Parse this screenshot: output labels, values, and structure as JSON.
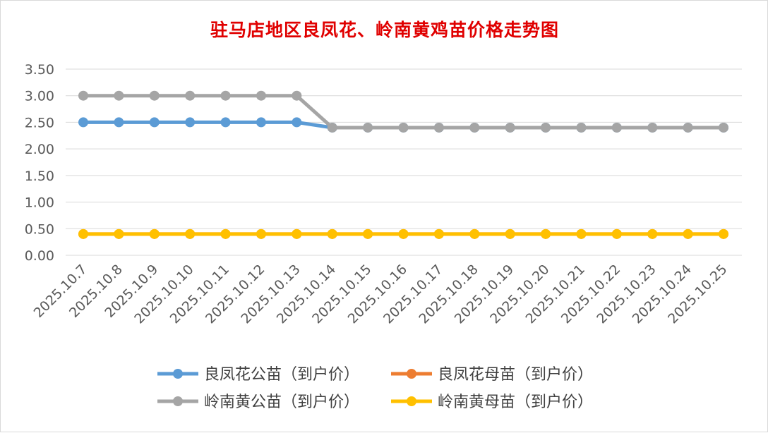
{
  "chart_data": {
    "type": "line",
    "title": "驻马店地区良凤花、岭南黄鸡苗价格走势图",
    "xlabel": "",
    "ylabel": "",
    "ylim": [
      0,
      3.5
    ],
    "yticks": [
      "0.00",
      "0.50",
      "1.00",
      "1.50",
      "2.00",
      "2.50",
      "3.00",
      "3.50"
    ],
    "grid": true,
    "legend_position": "bottom",
    "categories": [
      "2025.10.7",
      "2025.10.8",
      "2025.10.9",
      "2025.10.10",
      "2025.10.11",
      "2025.10.12",
      "2025.10.13",
      "2025.10.14",
      "2025.10.15",
      "2025.10.16",
      "2025.10.17",
      "2025.10.18",
      "2025.10.19",
      "2025.10.20",
      "2025.10.21",
      "2025.10.22",
      "2025.10.23",
      "2025.10.24",
      "2025.10.25"
    ],
    "series": [
      {
        "name": "良凤花公苗（到户价）",
        "color": "#5b9bd5",
        "values": [
          2.5,
          2.5,
          2.5,
          2.5,
          2.5,
          2.5,
          2.5,
          2.4,
          2.4,
          2.4,
          2.4,
          2.4,
          2.4,
          2.4,
          2.4,
          2.4,
          2.4,
          2.4,
          2.4
        ]
      },
      {
        "name": "良凤花母苗（到户价）",
        "color": "#ed7d31",
        "values": [
          0.4,
          0.4,
          0.4,
          0.4,
          0.4,
          0.4,
          0.4,
          0.4,
          0.4,
          0.4,
          0.4,
          0.4,
          0.4,
          0.4,
          0.4,
          0.4,
          0.4,
          0.4,
          0.4
        ]
      },
      {
        "name": "岭南黄公苗（到户价）",
        "color": "#a5a5a5",
        "values": [
          3.0,
          3.0,
          3.0,
          3.0,
          3.0,
          3.0,
          3.0,
          2.4,
          2.4,
          2.4,
          2.4,
          2.4,
          2.4,
          2.4,
          2.4,
          2.4,
          2.4,
          2.4,
          2.4
        ]
      },
      {
        "name": "岭南黄母苗（到户价）",
        "color": "#ffc000",
        "values": [
          0.4,
          0.4,
          0.4,
          0.4,
          0.4,
          0.4,
          0.4,
          0.4,
          0.4,
          0.4,
          0.4,
          0.4,
          0.4,
          0.4,
          0.4,
          0.4,
          0.4,
          0.4,
          0.4
        ]
      }
    ]
  }
}
